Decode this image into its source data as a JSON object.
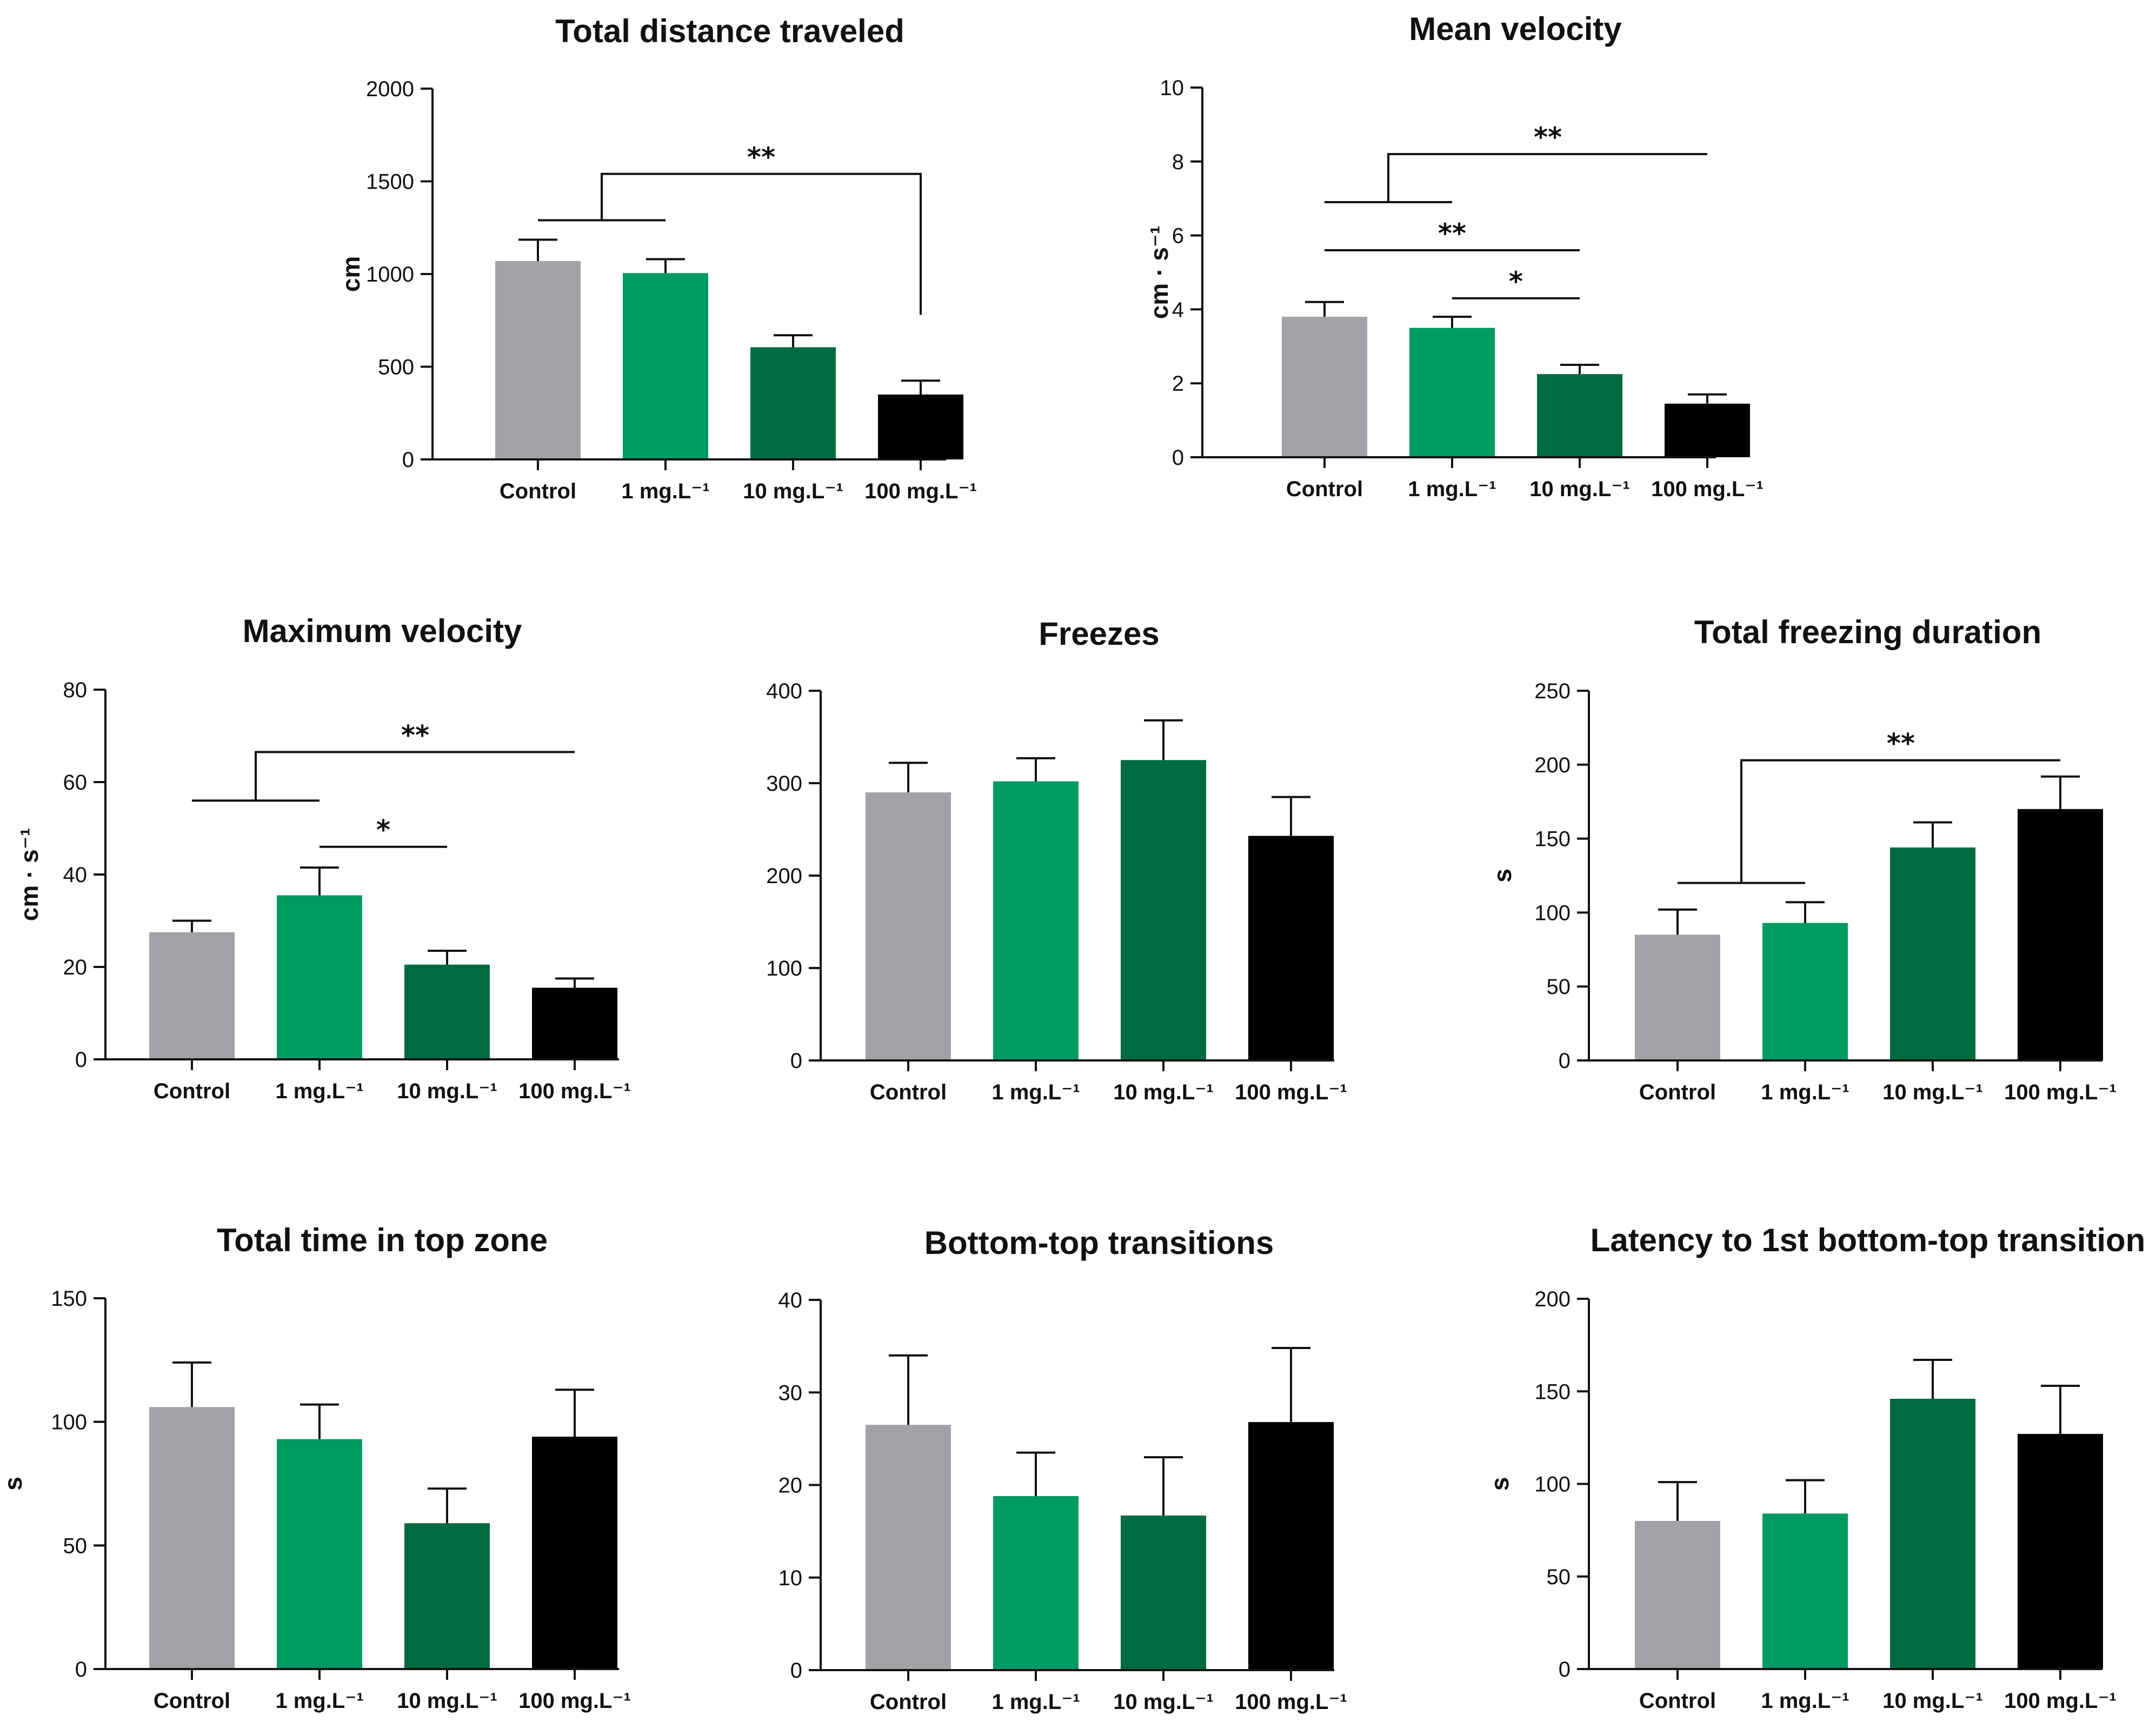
{
  "colors": [
    "#a2a1a6",
    "#009a63",
    "#006b40",
    "#000000"
  ],
  "chart_data": [
    {
      "type": "bar",
      "title": "Total distance traveled",
      "ylabel": "cm",
      "yticks": [
        0,
        500,
        1000,
        1500,
        2000
      ],
      "categories": [
        "Control",
        "1 mg.L⁻¹",
        "10 mg.L⁻¹",
        "100 mg.L⁻¹"
      ],
      "values": [
        1070,
        1005,
        605,
        350
      ],
      "errors": [
        115,
        75,
        65,
        75
      ],
      "ylim": [
        0,
        2000
      ],
      "brackets": [
        {
          "from": [
            0,
            1
          ],
          "to": [
            3
          ],
          "left_y": 1290,
          "right_y": 780,
          "top_y": 1540,
          "label": "**"
        }
      ]
    },
    {
      "type": "bar",
      "title": "Mean velocity",
      "ylabel": "cm · s⁻¹",
      "yticks": [
        0,
        2,
        4,
        6,
        8,
        10
      ],
      "categories": [
        "Control",
        "1 mg.L⁻¹",
        "10 mg.L⁻¹",
        "100 mg.L⁻¹"
      ],
      "values": [
        3.8,
        3.5,
        2.25,
        1.45
      ],
      "errors": [
        0.4,
        0.3,
        0.25,
        0.25
      ],
      "ylim": [
        0,
        10
      ],
      "brackets": [
        {
          "from": [
            0,
            1
          ],
          "to": [
            3
          ],
          "left_y": 6.9,
          "right_y": 8.2,
          "top_y": 8.2,
          "label": "**"
        },
        {
          "from": [
            0
          ],
          "to": [
            2
          ],
          "left_y": 5.6,
          "right_y": 5.6,
          "top_y": 5.6,
          "label": "**"
        },
        {
          "from": [
            1
          ],
          "to": [
            2
          ],
          "left_y": 4.3,
          "right_y": 4.3,
          "top_y": 4.3,
          "label": "*"
        }
      ]
    },
    {
      "type": "bar",
      "title": "Maximum velocity",
      "ylabel": "cm · s⁻¹",
      "yticks": [
        0,
        20,
        40,
        60,
        80
      ],
      "categories": [
        "Control",
        "1 mg.L⁻¹",
        "10 mg.L⁻¹",
        "100 mg.L⁻¹"
      ],
      "values": [
        27.5,
        35.5,
        20.5,
        15.5
      ],
      "errors": [
        2.5,
        6,
        3,
        2
      ],
      "ylim": [
        0,
        80
      ],
      "brackets": [
        {
          "from": [
            0,
            1
          ],
          "to": [
            3
          ],
          "left_y": 56,
          "right_y": 66.5,
          "top_y": 66.5,
          "label": "**"
        },
        {
          "from": [
            1
          ],
          "to": [
            2
          ],
          "left_y": 46,
          "right_y": 46,
          "top_y": 46,
          "label": "*"
        }
      ]
    },
    {
      "type": "bar",
      "title": "Freezes",
      "ylabel": "",
      "yticks": [
        0,
        100,
        200,
        300,
        400
      ],
      "categories": [
        "Control",
        "1 mg.L⁻¹",
        "10 mg.L⁻¹",
        "100 mg.L⁻¹"
      ],
      "values": [
        290,
        302,
        325,
        243
      ],
      "errors": [
        32,
        25,
        43,
        42
      ],
      "ylim": [
        0,
        400
      ],
      "brackets": []
    },
    {
      "type": "bar",
      "title": "Total freezing duration",
      "ylabel": "s",
      "yticks": [
        0,
        50,
        100,
        150,
        200,
        250
      ],
      "categories": [
        "Control",
        "1 mg.L⁻¹",
        "10 mg.L⁻¹",
        "100 mg.L⁻¹"
      ],
      "values": [
        85,
        93,
        144,
        170
      ],
      "errors": [
        17,
        14,
        17,
        22
      ],
      "ylim": [
        0,
        250
      ],
      "brackets": [
        {
          "from": [
            0,
            1
          ],
          "to": [
            3
          ],
          "left_y": 120,
          "right_y": 203,
          "top_y": 203,
          "label": "**"
        }
      ]
    },
    {
      "type": "bar",
      "title": "Total time in top zone",
      "ylabel": "s",
      "yticks": [
        0,
        50,
        100,
        150
      ],
      "categories": [
        "Control",
        "1 mg.L⁻¹",
        "10 mg.L⁻¹",
        "100 mg.L⁻¹"
      ],
      "values": [
        106,
        93,
        59,
        94
      ],
      "errors": [
        18,
        14,
        14,
        19
      ],
      "ylim": [
        0,
        150
      ],
      "brackets": []
    },
    {
      "type": "bar",
      "title": "Bottom-top transitions",
      "ylabel": "",
      "yticks": [
        0,
        10,
        20,
        30,
        40
      ],
      "categories": [
        "Control",
        "1 mg.L⁻¹",
        "10 mg.L⁻¹",
        "100 mg.L⁻¹"
      ],
      "values": [
        26.5,
        18.8,
        16.7,
        26.8
      ],
      "errors": [
        7.5,
        4.7,
        6.3,
        8
      ],
      "ylim": [
        0,
        40
      ],
      "brackets": []
    },
    {
      "type": "bar",
      "title": "Latency to 1st bottom-top transition",
      "ylabel": "s",
      "yticks": [
        0,
        50,
        100,
        150,
        200
      ],
      "categories": [
        "Control",
        "1 mg.L⁻¹",
        "10 mg.L⁻¹",
        "100 mg.L⁻¹"
      ],
      "values": [
        80,
        84,
        146,
        127
      ],
      "errors": [
        21,
        18,
        21,
        26
      ],
      "ylim": [
        0,
        200
      ],
      "brackets": []
    }
  ]
}
